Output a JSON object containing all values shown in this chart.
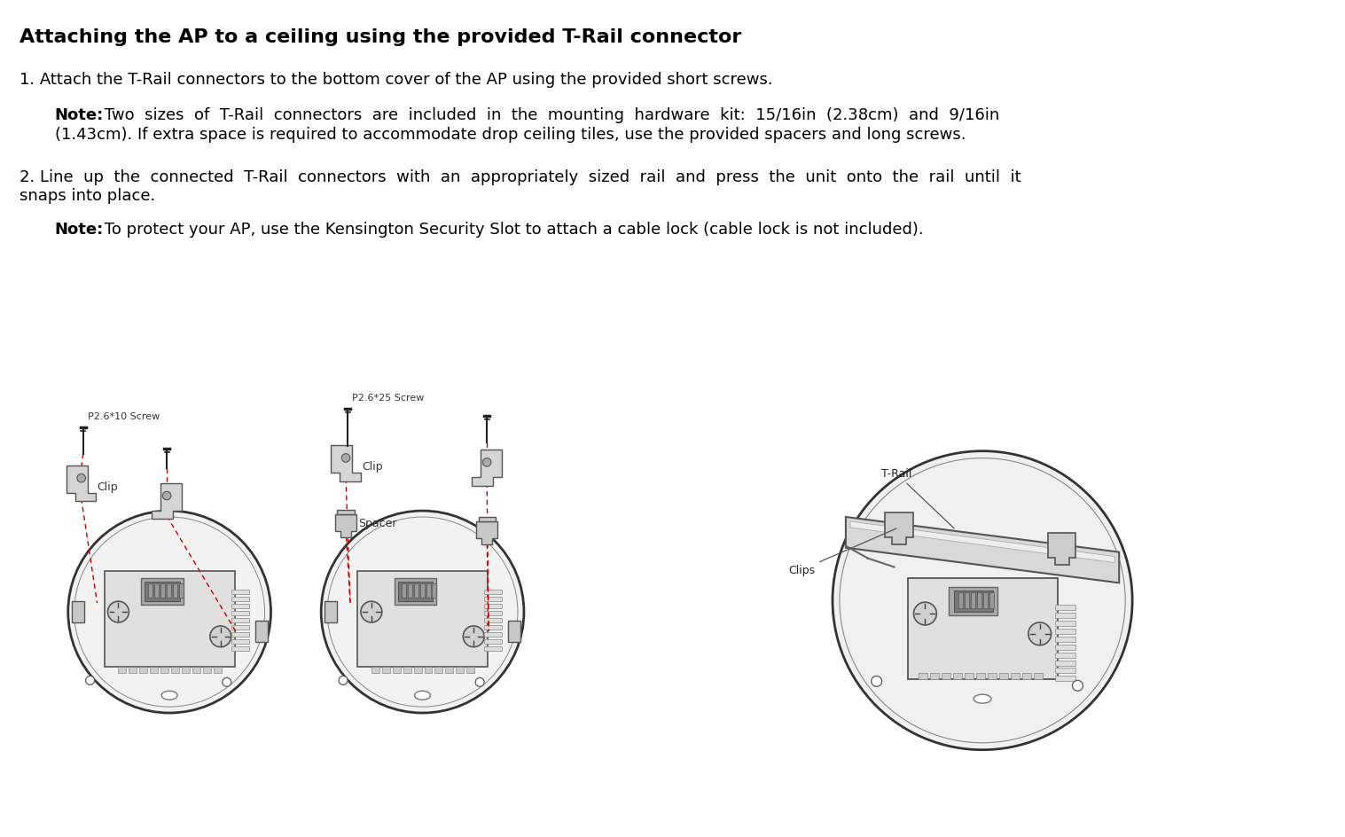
{
  "title": "Attaching the AP to a ceiling using the provided T-Rail connector",
  "background_color": "#ffffff",
  "text_color": "#000000",
  "title_fontsize": 16,
  "body_fontsize": 13,
  "note_fontsize": 13,
  "fig_width": 15.17,
  "fig_height": 9.45,
  "step1": "1. Attach the T-Rail connectors to the bottom cover of the AP using the provided short screws.",
  "note1_bold": "Note:",
  "note1_rest_line1": " Two  sizes  of  T-Rail  connectors  are  included  in  the  mounting  hardware  kit:  15/16in  (2.38cm)  and  9/16in",
  "note1_rest_line2": "(1.43cm). If extra space is required to accommodate drop ceiling tiles, use the provided spacers and long screws.",
  "step2_line1": "2. Line  up  the  connected  T-Rail  connectors  with  an  appropriately  sized  rail  and  press  the  unit  onto  the  rail  until  it",
  "step2_line2": "snaps into place.",
  "note2_bold": "Note:",
  "note2_rest": " To protect your AP, use the Kensington Security Slot to attach a cable lock (cable lock is not included).",
  "font_family": "DejaVu Sans"
}
